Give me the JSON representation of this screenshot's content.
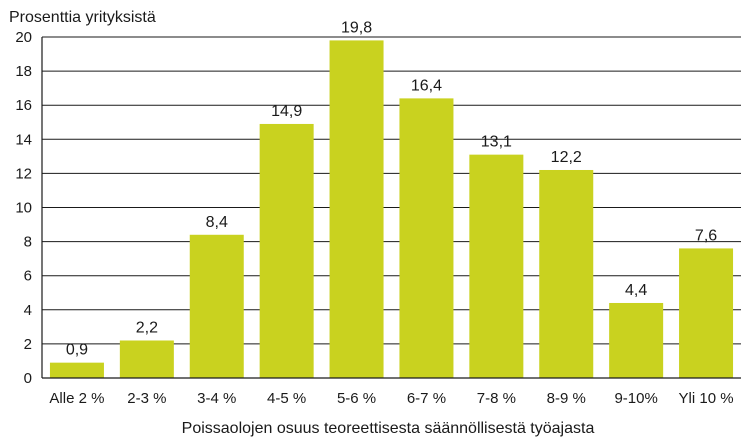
{
  "chart_data": {
    "type": "bar",
    "ylabel": "Prosenttia yrityksistä",
    "xlabel": "Poissaolojen osuus teoreettisesta säännöllisestä työajasta",
    "categories": [
      "Alle 2 %",
      "2-3 %",
      "3-4 %",
      "4-5 %",
      "5-6 %",
      "6-7 %",
      "7-8 %",
      "8-9 %",
      "9-10%",
      "Yli 10 %"
    ],
    "values": [
      0.9,
      2.2,
      8.4,
      14.9,
      19.8,
      16.4,
      13.1,
      12.2,
      4.4,
      7.6
    ],
    "value_labels": [
      "0,9",
      "2,2",
      "8,4",
      "14,9",
      "19,8",
      "16,4",
      "13,1",
      "12,2",
      "4,4",
      "7,6"
    ],
    "yticks": [
      0,
      2,
      4,
      6,
      8,
      10,
      12,
      14,
      16,
      18,
      20
    ],
    "ylim": [
      0,
      20
    ],
    "grid": true,
    "legend": "none",
    "bar_color": "#c9d21f"
  }
}
